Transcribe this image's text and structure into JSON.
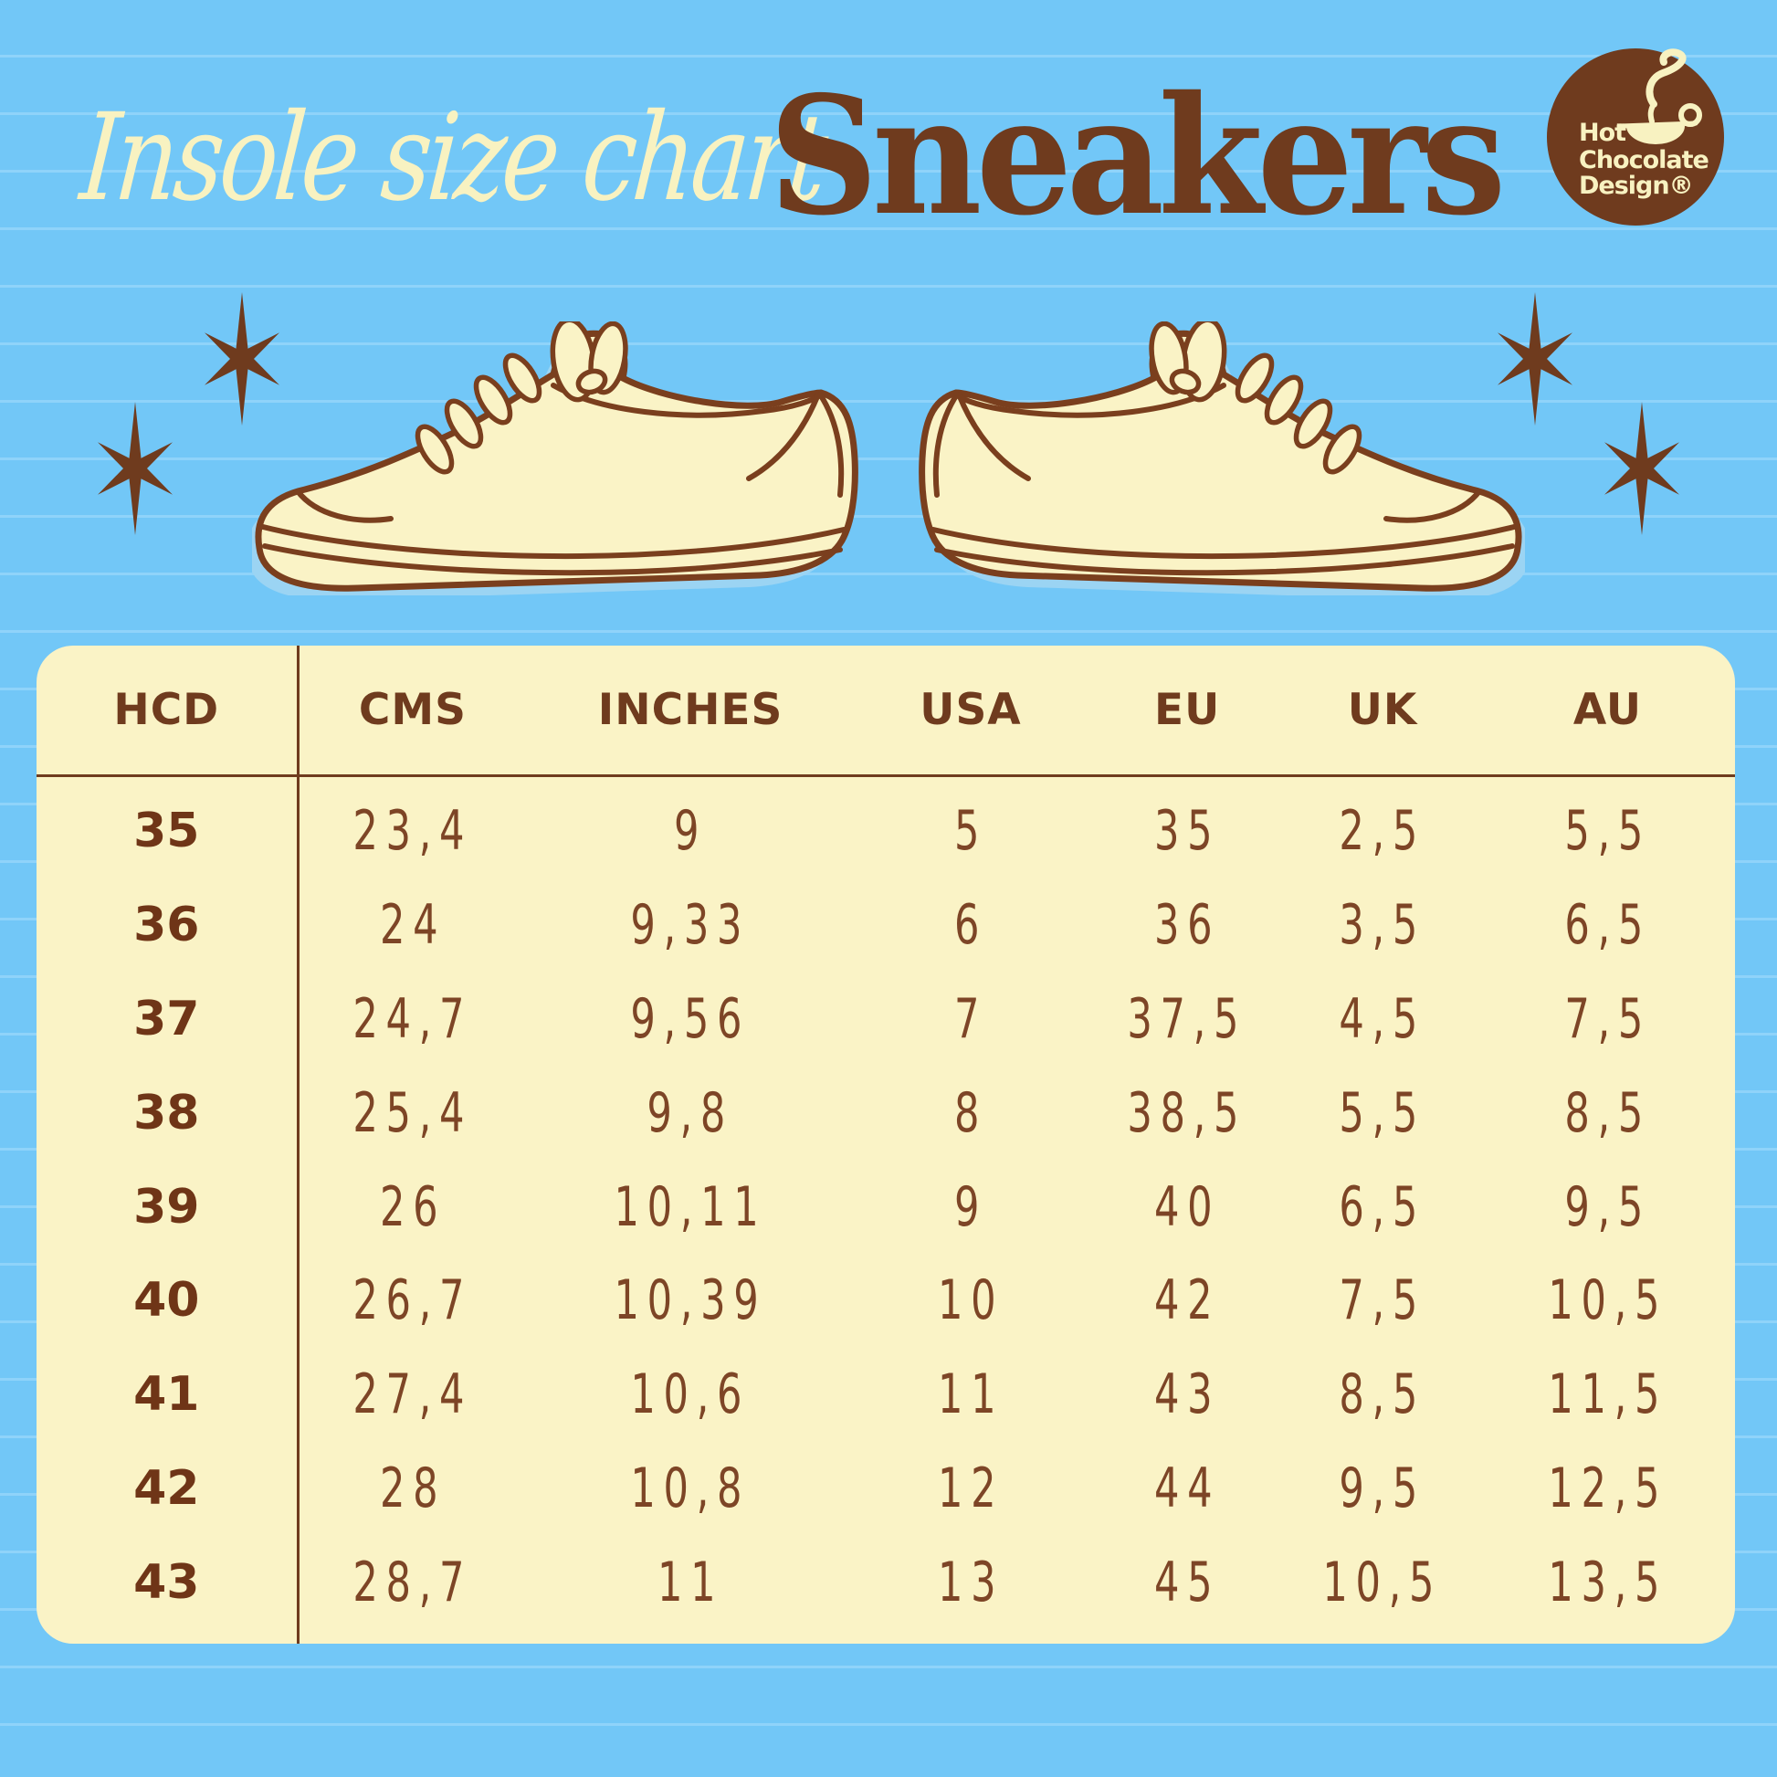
{
  "colors": {
    "background_blue": "#72c7f7",
    "stripe_blue": "#8fd3fa",
    "cream": "#faf3c6",
    "brown_dark": "#6f3b1e",
    "brown_text": "#7d4526",
    "shadow_blue": "#9bd4f3"
  },
  "header": {
    "subtitle": "Insole size chart",
    "title": "Sneakers"
  },
  "logo": {
    "line1": "Hot",
    "line2": "Chocolate",
    "line3": "Design®",
    "icon": "steaming-cup-with-spoon"
  },
  "illustration": {
    "description": "pair of cream lace-up sneakers with brown outlines, toes pointing outward",
    "star_count": 4
  },
  "chart_data": {
    "type": "table",
    "title": "Insole size chart — Sneakers",
    "columns": [
      "HCD",
      "CMS",
      "INCHES",
      "USA",
      "EU",
      "UK",
      "AU"
    ],
    "rows": [
      [
        "35",
        "23,4",
        "9",
        "5",
        "35",
        "2,5",
        "5,5"
      ],
      [
        "36",
        "24",
        "9,33",
        "6",
        "36",
        "3,5",
        "6,5"
      ],
      [
        "37",
        "24,7",
        "9,56",
        "7",
        "37,5",
        "4,5",
        "7,5"
      ],
      [
        "38",
        "25,4",
        "9,8",
        "8",
        "38,5",
        "5,5",
        "8,5"
      ],
      [
        "39",
        "26",
        "10,11",
        "9",
        "40",
        "6,5",
        "9,5"
      ],
      [
        "40",
        "26,7",
        "10,39",
        "10",
        "42",
        "7,5",
        "10,5"
      ],
      [
        "41",
        "27,4",
        "10,6",
        "11",
        "43",
        "8,5",
        "11,5"
      ],
      [
        "42",
        "28",
        "10,8",
        "12",
        "44",
        "9,5",
        "12,5"
      ],
      [
        "43",
        "28,7",
        "11",
        "13",
        "45",
        "10,5",
        "13,5"
      ]
    ]
  }
}
